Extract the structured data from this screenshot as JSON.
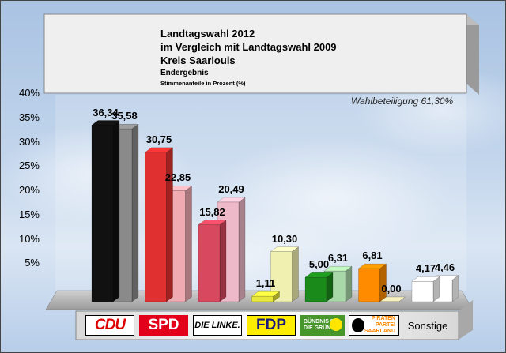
{
  "chart_data": {
    "type": "bar",
    "title": "Landtagswahl 2012",
    "subtitle_lines": [
      "im Vergleich mit Landtagswahl 2009",
      "Kreis Saarlouis"
    ],
    "status": "Endergebnis",
    "ylabel": "Stimmenanteile in Prozent (%)",
    "turnout_label": "Wahlbeteiligung 61,30%",
    "ylim": [
      0,
      40
    ],
    "y_ticks": [
      5,
      10,
      15,
      20,
      25,
      30,
      35,
      40
    ],
    "y_tick_labels": [
      "5%",
      "10%",
      "15%",
      "20%",
      "25%",
      "30%",
      "35%",
      "40%"
    ],
    "categories": [
      "CDU",
      "SPD",
      "DIE LINKE.",
      "FDP",
      "BÜNDNIS 90 DIE GRÜNEN",
      "PIRATEN PARTEI SAARLAND",
      "Sonstige"
    ],
    "series": [
      {
        "year": "2012",
        "values": [
          36.34,
          30.75,
          15.82,
          1.11,
          5.0,
          6.81,
          4.17
        ],
        "value_labels": [
          "36,34",
          "30,75",
          "15,82",
          "1,11",
          "5,00",
          "6,81",
          "4,17"
        ],
        "colors": [
          "#111111",
          "#e03030",
          "#d8485e",
          "#e8e83a",
          "#1a8a1a",
          "#ff8c00",
          "#ffffff"
        ]
      },
      {
        "year": "2009",
        "values": [
          35.58,
          22.85,
          20.49,
          10.3,
          6.31,
          0.0,
          4.46
        ],
        "value_labels": [
          "35,58",
          "22,85",
          "20,49",
          "10,30",
          "6,31",
          "0,00",
          "4,46"
        ],
        "colors": [
          "#8a8a8a",
          "#f0aab2",
          "#eeb9c8",
          "#f0f0b0",
          "#a8d8a8",
          "#ffd7a8",
          "#ffffff"
        ]
      }
    ],
    "grid": false,
    "legend": "none"
  },
  "logos": {
    "cdu": "CDU",
    "spd": "SPD",
    "linke": "DIE LINKE.",
    "fdp": "FDP",
    "gruene_line1": "BÜNDNIS 90",
    "gruene_line2": "DIE GRÜNEN",
    "piraten_line1": "PIRATEN",
    "piraten_line2": "PARTEI",
    "piraten_line3": "SAARLAND",
    "sonstige": "Sonstige"
  }
}
